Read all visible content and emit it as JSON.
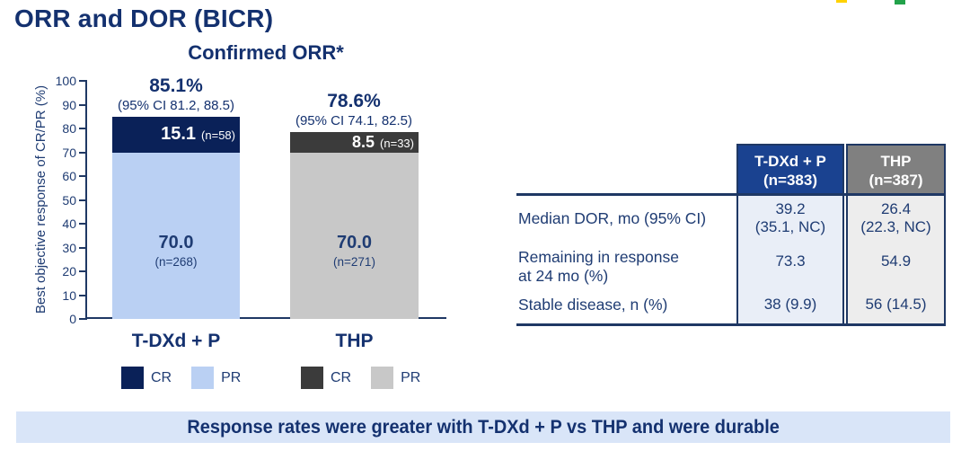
{
  "slide": {
    "title": "ORR and DOR (BICR)",
    "banner": "Response rates were greater with T-DXd + P vs THP and were durable"
  },
  "chart": {
    "title": "Confirmed ORR*",
    "y_axis_label": "Best objective response of CR/PR (%)",
    "groups": [
      {
        "name": "T-DXd + P",
        "orr": "85.1%",
        "ci": "(95% CI 81.2, 88.5)",
        "cr_value": "15.1",
        "cr_n": "(n=58)",
        "pr_value": "70.0",
        "pr_n": "(n=268)"
      },
      {
        "name": "THP",
        "orr": "78.6%",
        "ci": "(95% CI 74.1, 82.5)",
        "cr_value": "8.5",
        "cr_n": "(n=33)",
        "pr_value": "70.0",
        "pr_n": "(n=271)"
      }
    ],
    "legend": {
      "cr": "CR",
      "pr": "PR"
    }
  },
  "table": {
    "columns": [
      {
        "line1": "T-DXd + P",
        "line2": "(n=383)"
      },
      {
        "line1": "THP",
        "line2": "(n=387)"
      }
    ],
    "rows": [
      {
        "label": "Median DOR, mo (95% CI)",
        "tdxd_p": "39.2\n(35.1, NC)",
        "thp": "26.4\n(22.3, NC)"
      },
      {
        "label": "Remaining in response\nat 24 mo (%)",
        "tdxd_p": "73.3",
        "thp": "54.9"
      },
      {
        "label": "Stable disease, n (%)",
        "tdxd_p": "38 (9.9)",
        "thp": "56 (14.5)"
      }
    ]
  },
  "chart_data": {
    "type": "bar",
    "stacked": true,
    "title": "Confirmed ORR*",
    "ylabel": "Best objective response of CR/PR (%)",
    "ylim": [
      0,
      100
    ],
    "ytick_step": 10,
    "grid": false,
    "categories": [
      "T-DXd + P",
      "THP"
    ],
    "series": [
      {
        "name": "CR",
        "values": [
          15.1,
          8.5
        ],
        "counts": [
          58,
          33
        ]
      },
      {
        "name": "PR",
        "values": [
          70.0,
          70.0
        ],
        "counts": [
          268,
          271
        ]
      }
    ],
    "totals": [
      {
        "orr_pct": 85.1,
        "ci95": [
          81.2,
          88.5
        ]
      },
      {
        "orr_pct": 78.6,
        "ci95": [
          74.1,
          82.5
        ]
      }
    ],
    "legend_position": "below-category"
  },
  "colors": {
    "title_navy": "#14316f",
    "text_navy": "#1f3c73",
    "cr_tdxd": "#0a2158",
    "pr_tdxd": "#bad0f3",
    "cr_thp": "#3b3b3b",
    "pr_thp": "#c8c8c8",
    "table_header_blue": "#1a4290",
    "table_header_gray": "#808080",
    "table_cell_blue_bg": "#e9eef7",
    "table_cell_gray_bg": "#ededed",
    "table_border_navy": "#1f3864",
    "banner_bg": "#d9e5f8",
    "logo_yellow": "#ffd200",
    "logo_green": "#22a24a"
  }
}
